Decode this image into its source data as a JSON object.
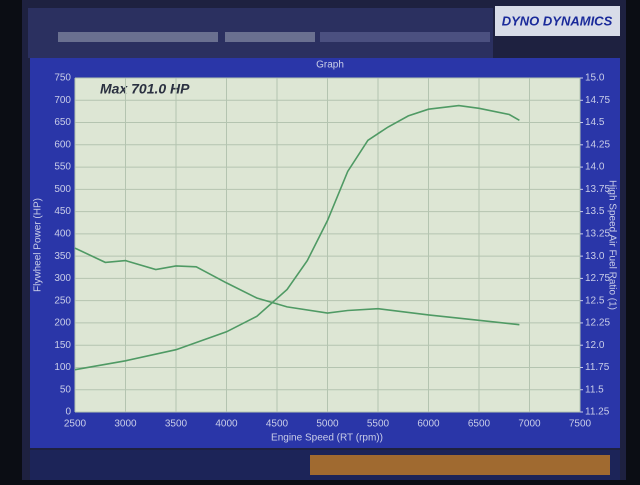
{
  "window": {
    "panel_title": "Graph",
    "logo": "DYNO DYNAMICS"
  },
  "chart_data": {
    "type": "line",
    "annotation": "Max 701.0 HP",
    "xlabel": "Engine Speed (RT (rpm))",
    "ylabel": "Flywheel Power (HP)",
    "y2label": "High Speed Air Fuel Ratio (1)",
    "xlim": [
      2500,
      7500
    ],
    "xticks": [
      2500,
      3000,
      3500,
      4000,
      4500,
      5000,
      5500,
      6000,
      6500,
      7000,
      7500
    ],
    "ylim": [
      0,
      750
    ],
    "yticks": [
      0,
      50,
      100,
      150,
      200,
      250,
      300,
      350,
      400,
      450,
      500,
      550,
      600,
      650,
      700,
      750
    ],
    "y2lim": [
      11.25,
      15
    ],
    "y2ticks": [
      11.25,
      11.5,
      11.75,
      {
        "value": 12,
        "label": "12.0"
      },
      12.25,
      12.5,
      12.75,
      {
        "value": 13,
        "label": "13.0"
      },
      13.25,
      13.5,
      13.75,
      {
        "value": 14,
        "label": "14.0"
      },
      14.25,
      14.5,
      14.75,
      {
        "value": 15,
        "label": "15.0"
      }
    ],
    "grid": true,
    "series": [
      {
        "color": "#4f9a64",
        "x": [
          2500,
          3000,
          3500,
          4000,
          4300,
          4600,
          4800,
          5000,
          5200,
          5400,
          5600,
          5800,
          6000,
          6300,
          6500,
          6800,
          6900
        ],
        "values": [
          95,
          115,
          140,
          180,
          215,
          275,
          340,
          430,
          540,
          610,
          640,
          665,
          680,
          688,
          682,
          668,
          655
        ]
      },
      {
        "color": "#4f9a64",
        "axis": "y2",
        "x": [
          2500,
          2800,
          3000,
          3300,
          3500,
          3700,
          4000,
          4300,
          4600,
          5000,
          5200,
          5500,
          6000,
          6500,
          6900
        ],
        "values": [
          13.09,
          12.93,
          12.95,
          12.85,
          12.89,
          12.88,
          12.7,
          12.53,
          12.43,
          12.36,
          12.39,
          12.41,
          12.34,
          12.28,
          12.23
        ]
      }
    ]
  }
}
